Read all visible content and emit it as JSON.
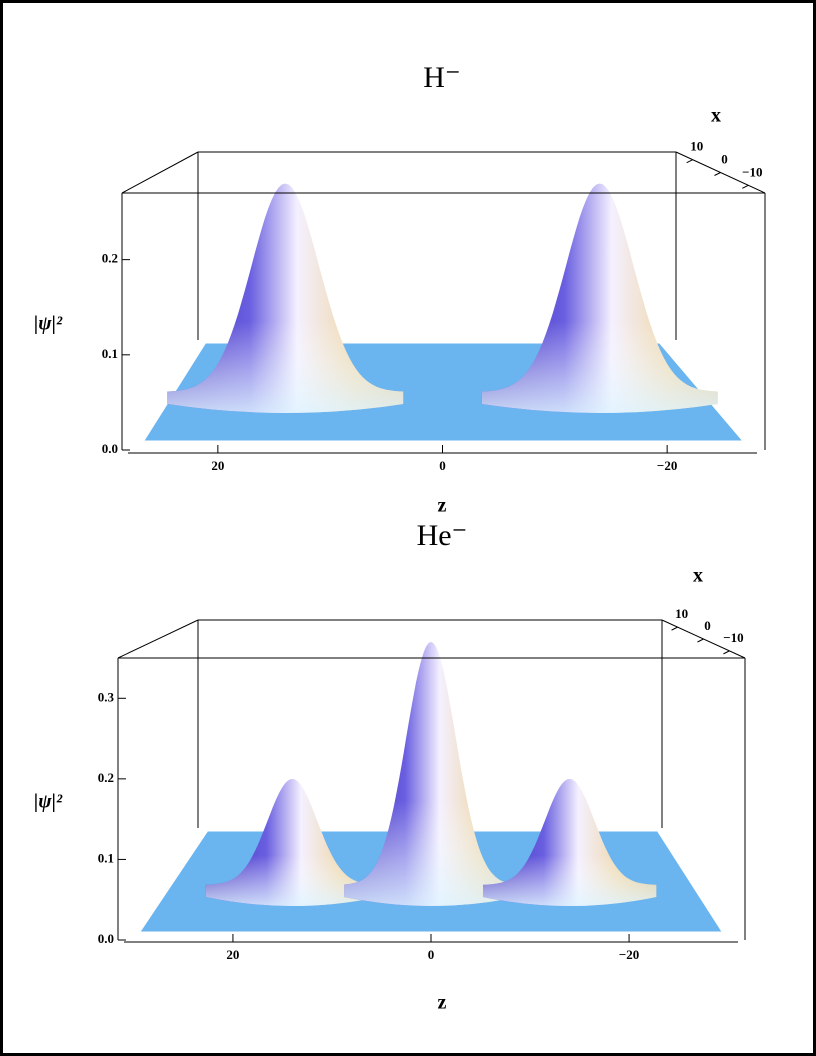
{
  "chart_data": [
    {
      "type": "surface3d",
      "title": "H⁻",
      "x_label": "x",
      "z_label": "z",
      "value_label": "|ψ|²",
      "peaks": [
        {
          "z": 14,
          "height": 0.28
        },
        {
          "z": -14,
          "height": 0.28
        }
      ],
      "zlim": [
        28,
        -28
      ],
      "zticks": [
        20,
        0,
        {
          "value": -20,
          "label": "−20"
        }
      ],
      "xlim": [
        16,
        -16
      ],
      "xticks": [
        10,
        0,
        {
          "value": -10,
          "label": "−10"
        }
      ],
      "ylim": [
        0,
        0.27
      ],
      "yticks": [
        {
          "value": 0,
          "label": "0.0"
        },
        0.1,
        0.2
      ],
      "floor_color": "#6ab4f0"
    },
    {
      "type": "surface3d",
      "title": "He⁻",
      "x_label": "x",
      "z_label": "z",
      "value_label": "|ψ|²",
      "peaks": [
        {
          "z": 14,
          "height": 0.2
        },
        {
          "z": 0,
          "height": 0.37
        },
        {
          "z": -14,
          "height": 0.2
        }
      ],
      "zlim": [
        31,
        -31
      ],
      "zticks": [
        20,
        0,
        {
          "value": -20,
          "label": "−20"
        }
      ],
      "xlim": [
        16,
        -16
      ],
      "xticks": [
        10,
        0,
        {
          "value": -10,
          "label": "−10"
        }
      ],
      "ylim": [
        0,
        0.35
      ],
      "yticks": [
        {
          "value": 0,
          "label": "0.0"
        },
        0.1,
        0.2,
        0.3
      ],
      "floor_color": "#6ab4f0"
    }
  ]
}
